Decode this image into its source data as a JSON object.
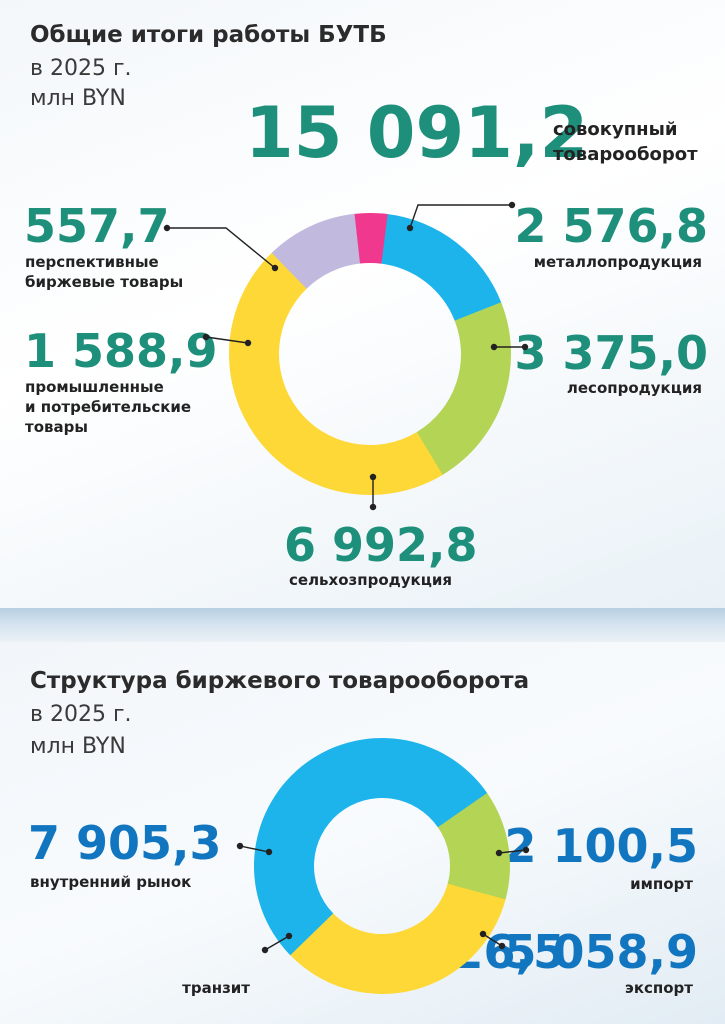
{
  "section1": {
    "title": "Общие итоги работы БУТБ",
    "subtitle_year": "в 2025 г.",
    "subtitle_unit": "млн BYN",
    "total_value": "15 091,2",
    "total_label_1": "совокупный",
    "total_label_2": "товарооборот"
  },
  "section2": {
    "title": "Структура биржевого товарооборота",
    "subtitle_year": "в 2025 г.",
    "subtitle_unit": "млн BYN"
  },
  "colors": {
    "blue": "#1db4ec",
    "green": "#b4d455",
    "yellow": "#fdd837",
    "lilac": "#c2b9de",
    "pink": "#f0388f",
    "teal_text": "#1e8f7a",
    "blue_text": "#1176bf"
  },
  "chart_data": [
    {
      "type": "pie",
      "title": "Общие итоги работы БУТБ",
      "unit": "млн BYN",
      "categories": [
        "металлопродукция",
        "лесопродукция",
        "сельхозпродукция",
        "промышленные и потребительские товары",
        "перспективные биржевые товары"
      ],
      "values": [
        2576.8,
        3375.0,
        6992.8,
        1588.9,
        557.7
      ],
      "value_labels": [
        "2 576,8",
        "3 375,0",
        "6 992,8",
        "1 588,9",
        "557,7"
      ],
      "label_lines": [
        [
          "металлопродукция"
        ],
        [
          "лесопродукция"
        ],
        [
          "сельхозпродукция"
        ],
        [
          "промышленные",
          "и потребительские",
          "товары"
        ],
        [
          "перспективные",
          "биржевые товары"
        ]
      ],
      "colors": [
        "#1db4ec",
        "#b4d455",
        "#fdd837",
        "#c2b9de",
        "#f0388f"
      ]
    },
    {
      "type": "pie",
      "title": "Структура биржевого товарооборота",
      "unit": "млн BYN",
      "categories": [
        "импорт",
        "экспорт",
        "транзит",
        "внутренний рынок"
      ],
      "values": [
        2100.5,
        5058.9,
        26.5,
        7905.3
      ],
      "value_labels": [
        "2 100,5",
        "5 058,9",
        "26,5",
        "7 905,3"
      ],
      "label_lines": [
        [
          "импорт"
        ],
        [
          "экспорт"
        ],
        [
          "транзит"
        ],
        [
          "внутренний рынок"
        ]
      ],
      "colors": [
        "#b4d455",
        "#fdd837",
        "#1db4ec",
        "#1db4ec"
      ]
    }
  ]
}
